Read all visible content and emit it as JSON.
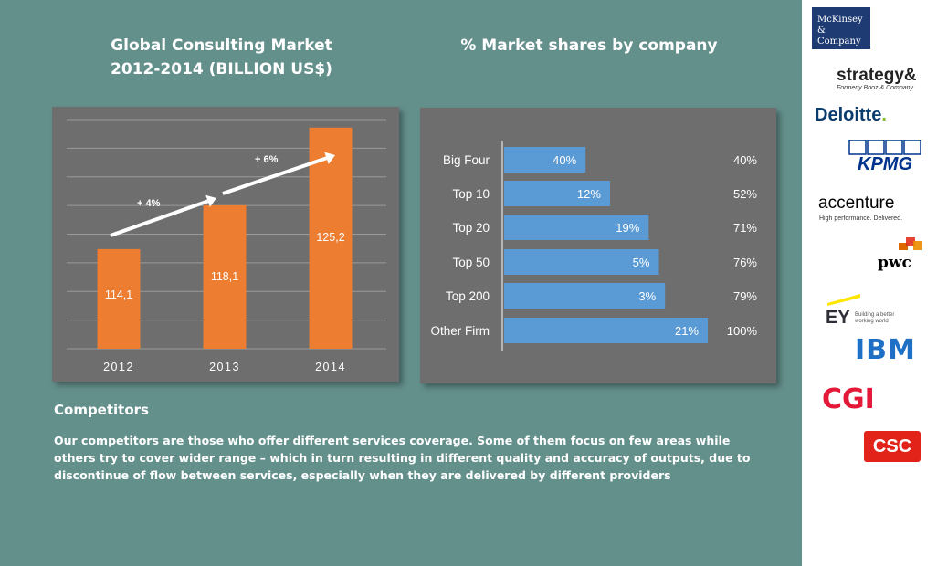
{
  "titles": {
    "left_line1": "Global Consulting  Market",
    "left_line2": "2012-2014 (BILLION US$)",
    "right": "% Market shares by company"
  },
  "chart_data": [
    {
      "type": "bar",
      "categories": [
        "2012",
        "2013",
        "2014"
      ],
      "values": [
        114.1,
        118.1,
        125.2
      ],
      "value_labels": [
        "114,1",
        "118,1",
        "125,2"
      ],
      "bar_color": "#ed7d31",
      "annotations": [
        {
          "text": "+ 4%",
          "from": "2012",
          "to": "2013"
        },
        {
          "text": "+ 6%",
          "from": "2013",
          "to": "2014"
        }
      ],
      "grid": true,
      "title": "",
      "xlabel": "",
      "ylabel": ""
    },
    {
      "type": "bar",
      "orientation": "horizontal",
      "categories": [
        "Big Four",
        "Top 10",
        "Top 20",
        "Top 50",
        "Top 200",
        "Other Firm"
      ],
      "values": [
        40,
        12,
        19,
        5,
        3,
        21
      ],
      "cumulative": [
        40,
        52,
        71,
        76,
        79,
        100
      ],
      "value_labels": [
        "40%",
        "12%",
        "19%",
        "5%",
        "3%",
        "21%"
      ],
      "cumulative_labels": [
        "40%",
        "52%",
        "71%",
        "76%",
        "79%",
        "100%"
      ],
      "bar_color": "#5b9bd5",
      "xlim": [
        0,
        100
      ],
      "grid": false
    }
  ],
  "competitors": {
    "heading": "Competitors",
    "text": "Our competitors are those who offer different services coverage. Some of them focus on few areas while others try to cover wider range – which in turn resulting in different quality and accuracy of outputs, due to discontinue of flow between services, especially when they are delivered by different providers"
  },
  "logos": {
    "mckinsey_line1": "McKinsey",
    "mckinsey_line2": "& Company",
    "strategy": "strategy&",
    "strategy_sub": "Formerly Booz & Company",
    "deloitte": "Deloitte",
    "deloitte_dot": ".",
    "kpmg": "KPMG",
    "accenture": "accenture",
    "accenture_sub": "High performance. Delivered.",
    "pwc": "pwc",
    "ey": "EY",
    "ey_sub": "Building a better working world",
    "ibm": "IBM",
    "cgi": "CGI",
    "csc": "CSC"
  },
  "colors": {
    "background": "#64908c",
    "panel": "#6e6e6e",
    "bar_orange": "#ed7d31",
    "bar_blue": "#5b9bd5"
  }
}
